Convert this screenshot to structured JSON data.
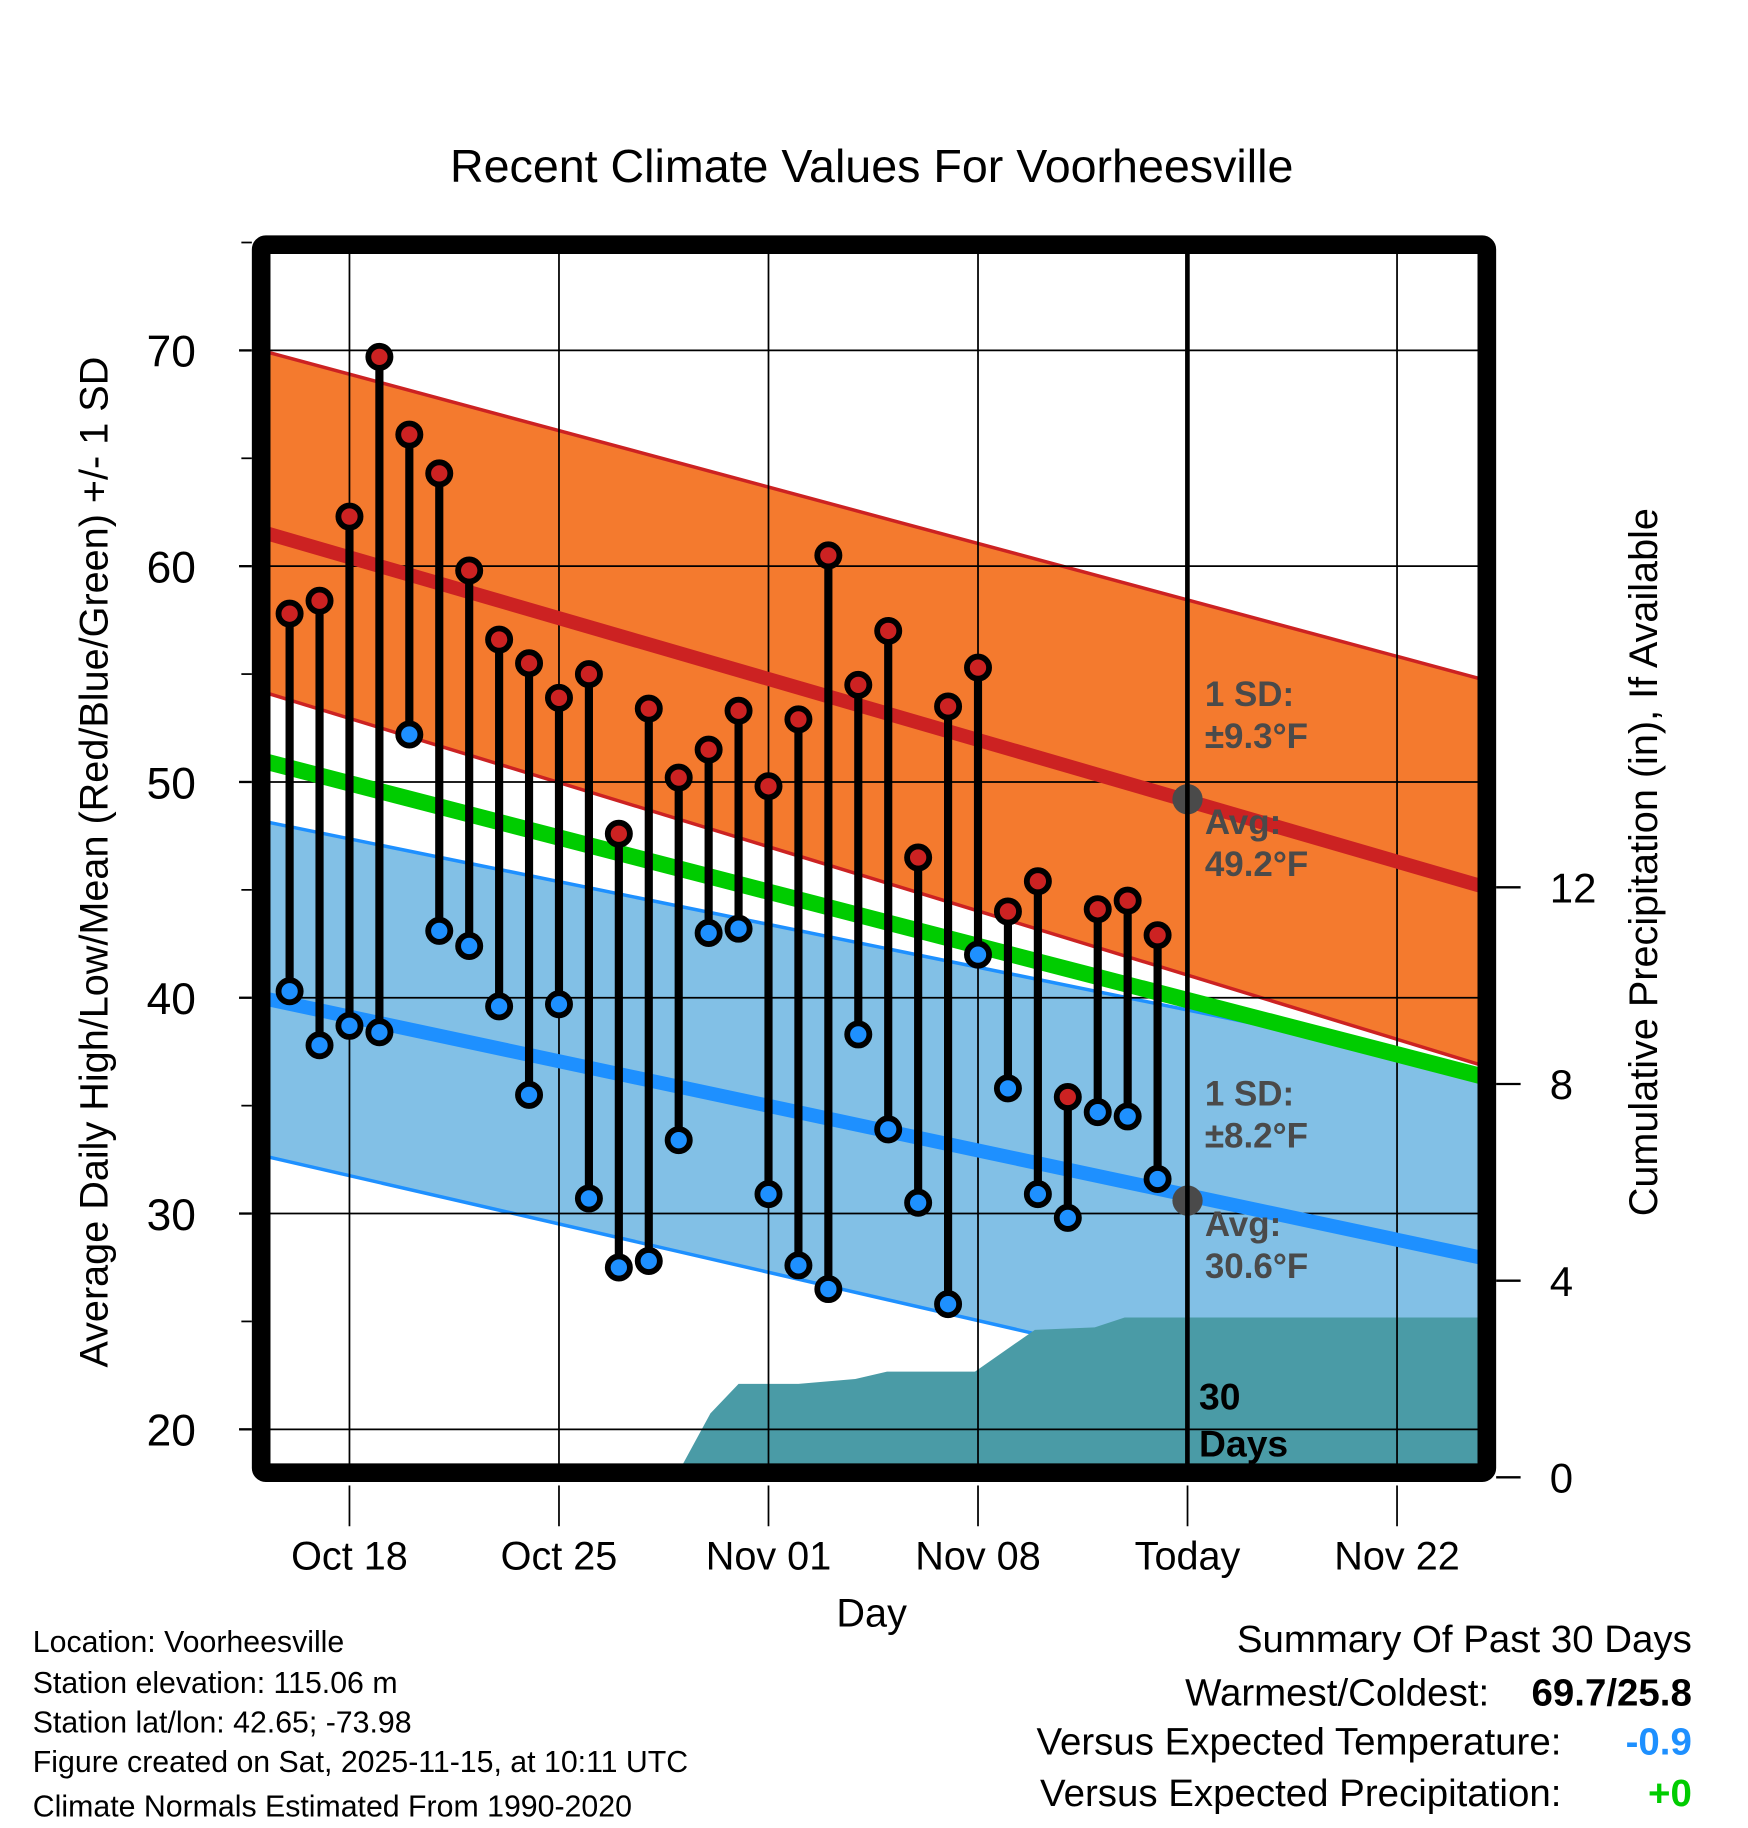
{
  "chart_data": {
    "type": "line",
    "title": "Recent Climate Values For Voorheesville",
    "xlabel": "Day",
    "ylabel": "Average Daily High/Low/Mean (Red/Blue/Green) +/- 1 SD",
    "ylabel_right": "Cumulative Precipitation (in), If Available",
    "ylim": [
      18.1,
      74.9
    ],
    "ylim_right": [
      0,
      25.1
    ],
    "x_units": "days since Oct 16",
    "xlim": [
      -0.95,
      40
    ],
    "yticks": [
      20,
      30,
      40,
      50,
      60,
      70
    ],
    "yticks_right": [
      0,
      4,
      8,
      12
    ],
    "xticks": [
      {
        "x": 2,
        "label": "Oct 18"
      },
      {
        "x": 9,
        "label": "Oct 25"
      },
      {
        "x": 16,
        "label": "Nov 01"
      },
      {
        "x": 23,
        "label": "Nov 08"
      },
      {
        "x": 30,
        "label": "Today"
      },
      {
        "x": 37,
        "label": "Nov 22"
      }
    ],
    "grid": true,
    "days": [
      "Oct 16",
      "Oct 17",
      "Oct 18",
      "Oct 19",
      "Oct 20",
      "Oct 21",
      "Oct 22",
      "Oct 23",
      "Oct 24",
      "Oct 25",
      "Oct 26",
      "Oct 27",
      "Oct 28",
      "Oct 29",
      "Oct 30",
      "Oct 31",
      "Nov 01",
      "Nov 02",
      "Nov 03",
      "Nov 04",
      "Nov 05",
      "Nov 06",
      "Nov 07",
      "Nov 08",
      "Nov 09",
      "Nov 10",
      "Nov 11",
      "Nov 12",
      "Nov 13",
      "Nov 14"
    ],
    "series": [
      {
        "name": "Daily High",
        "color": "#cc2222",
        "values": [
          57.8,
          58.4,
          62.3,
          69.7,
          66.1,
          64.3,
          59.8,
          56.6,
          55.5,
          53.9,
          55.0,
          47.6,
          53.4,
          50.2,
          51.5,
          53.3,
          49.8,
          52.9,
          60.5,
          54.5,
          57.0,
          46.5,
          53.5,
          55.3,
          44.0,
          45.4,
          35.4,
          44.1,
          44.5,
          42.9
        ]
      },
      {
        "name": "Daily Low",
        "color": "#1e90ff",
        "values": [
          40.3,
          37.8,
          38.7,
          38.4,
          52.2,
          43.1,
          42.4,
          39.6,
          35.5,
          39.7,
          30.7,
          27.5,
          27.8,
          33.4,
          43.0,
          43.2,
          30.9,
          27.6,
          26.5,
          38.3,
          33.9,
          30.5,
          25.8,
          42.0,
          35.8,
          30.9,
          29.8,
          34.7,
          34.5,
          31.6
        ]
      }
    ],
    "normals": {
      "x": [
        -0.95,
        40
      ],
      "avg_high": [
        61.6,
        45.1
      ],
      "high_sd_upper": [
        70.0,
        54.7
      ],
      "high_sd_lower": [
        54.2,
        36.8
      ],
      "mean": [
        51.0,
        36.3
      ],
      "avg_low": [
        40.0,
        27.9
      ],
      "low_sd_upper": [
        48.2,
        36.6
      ],
      "low_sd_lower": [
        32.7,
        19.6
      ],
      "colors": {
        "high_band": "#f47a2e",
        "high_line": "#cc2222",
        "low_band": "#82c0e6",
        "low_line": "#1e90ff",
        "mean_line": "#00cc00"
      }
    },
    "precip": {
      "color": "#4a9ba6",
      "points": [
        [
          -0.95,
          0
        ],
        [
          7.06,
          0
        ],
        [
          7.6,
          0.08
        ],
        [
          12.97,
          0.08
        ],
        [
          14.06,
          1.3
        ],
        [
          15.0,
          1.9
        ],
        [
          17.0,
          1.9
        ],
        [
          18.9,
          2.0
        ],
        [
          19.96,
          2.15
        ],
        [
          22.9,
          2.15
        ],
        [
          24.9,
          3.0
        ],
        [
          26.9,
          3.05
        ],
        [
          27.9,
          3.25
        ],
        [
          40,
          3.25
        ]
      ]
    },
    "today_x": 30,
    "annotations": {
      "high_sd": [
        "1 SD:",
        "±9.3°F"
      ],
      "high_avg": [
        "Avg:",
        "49.2°F"
      ],
      "low_sd": [
        "1 SD:",
        "±8.2°F"
      ],
      "low_avg": [
        "Avg:",
        "30.6°F"
      ],
      "window": [
        "30",
        "Days"
      ],
      "today_high_avg": 49.2,
      "today_low_avg": 30.6
    }
  },
  "info": {
    "lines": [
      "Location: Voorheesville",
      "Station elevation: 115.06 m",
      "Station lat/lon: 42.65; -73.98",
      "Figure created on Sat, 2025-11-15, at 10:11 UTC",
      "Climate Normals Estimated From 1990-2020"
    ]
  },
  "summary": {
    "title": "Summary Of Past 30 Days",
    "warm_label": "Warmest/Coldest:",
    "warm_value": "69.7/25.8",
    "temp_label": "Versus Expected Temperature:",
    "temp_value": "-0.9",
    "temp_color": "#1e90ff",
    "precip_label": "Versus Expected Precipitation:",
    "precip_value": "+0",
    "precip_color": "#00cc00"
  }
}
